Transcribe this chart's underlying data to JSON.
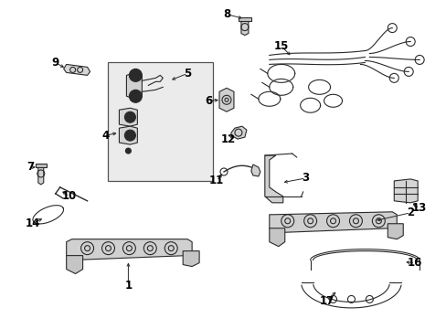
{
  "bg_color": "#ffffff",
  "line_color": "#2a2a2a",
  "fig_width": 4.89,
  "fig_height": 3.6,
  "dpi": 100,
  "label_fontsize": 8.5,
  "box_fill": "#e8e8e8",
  "box_edge": "#333333"
}
